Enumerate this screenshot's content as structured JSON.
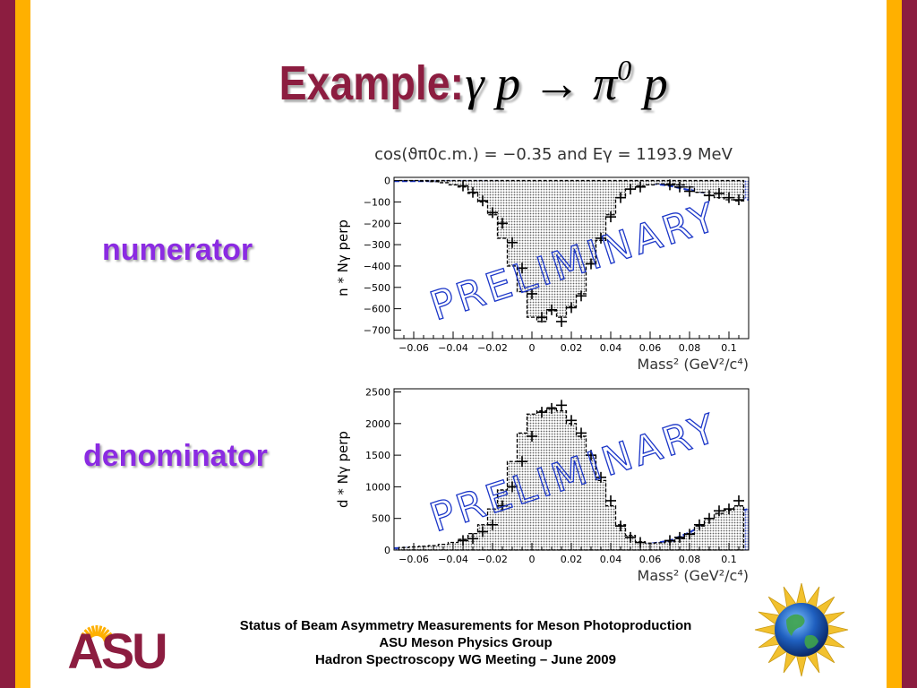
{
  "colors": {
    "maroon": "#8C1D40",
    "gold": "#FFB000",
    "purple": "#8B2BE2",
    "wave": "#1B36C8",
    "fill_blue": "#2B3FB8"
  },
  "slide": {
    "title_word": "Example:",
    "title_reaction": "γ p → π",
    "title_sup": "0",
    "title_tail": " p",
    "label_top": "numerator",
    "label_bottom": "denominator",
    "footer": [
      "Status of Beam Asymmetry Measurements for Meson Photoproduction",
      "ASU Meson Physics Group",
      "Hadron Spectroscopy WG Meeting – June 2009"
    ]
  },
  "logos": {
    "left": {
      "text": "ASU",
      "icon": "asu-logo-icon"
    },
    "right": {
      "icon": "globe-emblem-icon"
    }
  },
  "chart_data": [
    {
      "type": "bar",
      "title": "cos(ϑπ0c.m.) = −0.35 and Eγ = 1193.9 MeV",
      "xlabel": "Mass² (GeV²/c⁴)",
      "ylabel": "n * Nγ perp",
      "watermark": "PRELIMINARY",
      "xlim": [
        -0.07,
        0.11
      ],
      "ylim": [
        -740,
        15
      ],
      "x_ticks": [
        -0.06,
        -0.04,
        -0.02,
        0,
        0.02,
        0.04,
        0.06,
        0.08,
        0.1
      ],
      "x_tick_labels": [
        "−0.06",
        "−0.04",
        "−0.02",
        "0",
        "0.02",
        "0.04",
        "0.06",
        "0.08",
        "0.1"
      ],
      "y_ticks": [
        0,
        -100,
        -200,
        -300,
        -400,
        -500,
        -600,
        -700
      ],
      "y_tick_labels": [
        "0",
        "−100",
        "−200",
        "−300",
        "−400",
        "−500",
        "−600",
        "−700"
      ],
      "series": [
        {
          "style": "histogram",
          "x": [
            -0.065,
            -0.06,
            -0.055,
            -0.05,
            -0.045,
            -0.04,
            -0.035,
            -0.03,
            -0.025,
            -0.02,
            -0.015,
            -0.01,
            -0.005,
            0,
            0.005,
            0.01,
            0.015,
            0.02,
            0.025,
            0.03,
            0.035,
            0.04,
            0.045,
            0.05,
            0.055,
            0.06,
            0.065,
            0.07,
            0.075,
            0.08,
            0.085,
            0.09,
            0.095,
            0.1,
            0.105
          ],
          "values": [
            0,
            0,
            -2,
            -5,
            -10,
            -20,
            -30,
            -60,
            -100,
            -160,
            -270,
            -400,
            -520,
            -640,
            -660,
            -610,
            -640,
            -590,
            -530,
            -390,
            -280,
            -160,
            -80,
            -40,
            -25,
            -20,
            -15,
            -15,
            -20,
            -30,
            -55,
            -70,
            -80,
            -90,
            -95
          ]
        },
        {
          "style": "points",
          "x": [
            -0.035,
            -0.03,
            -0.025,
            -0.02,
            -0.015,
            -0.01,
            -0.005,
            0,
            0.005,
            0.01,
            0.015,
            0.02,
            0.025,
            0.03,
            0.035,
            0.04,
            0.045,
            0.05,
            0.055,
            0.07,
            0.075,
            0.08,
            0.09,
            0.095,
            0.1,
            0.105
          ],
          "values": [
            -25,
            -55,
            -95,
            -150,
            -200,
            -290,
            -410,
            -530,
            -640,
            -605,
            -660,
            -595,
            -540,
            -390,
            -270,
            -170,
            -80,
            -40,
            -30,
            -20,
            -30,
            -50,
            -70,
            -60,
            -80,
            -90
          ]
        },
        {
          "style": "dashed-fill",
          "x": [
            -0.07,
            -0.05,
            -0.03,
            -0.01,
            0.01,
            0.03,
            0.05,
            0.06,
            0.07,
            0.08,
            0.09,
            0.1,
            0.11
          ],
          "values": [
            -3,
            -3,
            -3,
            -5,
            -8,
            -8,
            -8,
            -12,
            -25,
            -45,
            -60,
            -75,
            -90
          ]
        }
      ]
    },
    {
      "type": "bar",
      "xlabel": "Mass² (GeV²/c⁴)",
      "ylabel": "d * Nγ perp",
      "watermark": "PRELIMINARY",
      "xlim": [
        -0.07,
        0.11
      ],
      "ylim": [
        0,
        2550
      ],
      "x_ticks": [
        -0.06,
        -0.04,
        -0.02,
        0,
        0.02,
        0.04,
        0.06,
        0.08,
        0.1
      ],
      "x_tick_labels": [
        "−0.06",
        "−0.04",
        "−0.02",
        "0",
        "0.02",
        "0.04",
        "0.06",
        "0.08",
        "0.1"
      ],
      "y_ticks": [
        0,
        500,
        1000,
        1500,
        2000,
        2500
      ],
      "y_tick_labels": [
        "0",
        "500",
        "1000",
        "1500",
        "2000",
        "2500"
      ],
      "series": [
        {
          "style": "histogram",
          "x": [
            -0.065,
            -0.06,
            -0.055,
            -0.05,
            -0.045,
            -0.04,
            -0.035,
            -0.03,
            -0.025,
            -0.02,
            -0.015,
            -0.01,
            -0.005,
            0,
            0.005,
            0.01,
            0.015,
            0.02,
            0.025,
            0.03,
            0.035,
            0.04,
            0.045,
            0.05,
            0.055,
            0.06,
            0.065,
            0.07,
            0.075,
            0.08,
            0.085,
            0.09,
            0.095,
            0.1,
            0.105
          ],
          "values": [
            40,
            50,
            60,
            70,
            90,
            120,
            170,
            260,
            400,
            650,
            950,
            1400,
            1850,
            2150,
            2200,
            2250,
            2200,
            2000,
            1800,
            1500,
            1100,
            700,
            400,
            230,
            130,
            110,
            115,
            130,
            180,
            260,
            380,
            500,
            580,
            630,
            700
          ]
        },
        {
          "style": "points",
          "x": [
            -0.035,
            -0.03,
            -0.025,
            -0.02,
            -0.015,
            -0.01,
            -0.005,
            0,
            0.005,
            0.01,
            0.015,
            0.02,
            0.025,
            0.03,
            0.035,
            0.04,
            0.045,
            0.05,
            0.055,
            0.07,
            0.075,
            0.08,
            0.085,
            0.09,
            0.095,
            0.1,
            0.105
          ],
          "values": [
            150,
            180,
            290,
            400,
            700,
            1000,
            1400,
            1800,
            2180,
            2240,
            2290,
            2050,
            1850,
            1500,
            1150,
            780,
            380,
            200,
            120,
            150,
            200,
            250,
            400,
            500,
            620,
            650,
            780
          ]
        },
        {
          "style": "dashed-fill",
          "x": [
            -0.07,
            -0.05,
            -0.03,
            -0.01,
            0.01,
            0.03,
            0.05,
            0.06,
            0.07,
            0.08,
            0.09,
            0.1,
            0.11
          ],
          "values": [
            30,
            40,
            50,
            60,
            70,
            80,
            90,
            100,
            150,
            280,
            450,
            580,
            650
          ]
        }
      ]
    }
  ]
}
